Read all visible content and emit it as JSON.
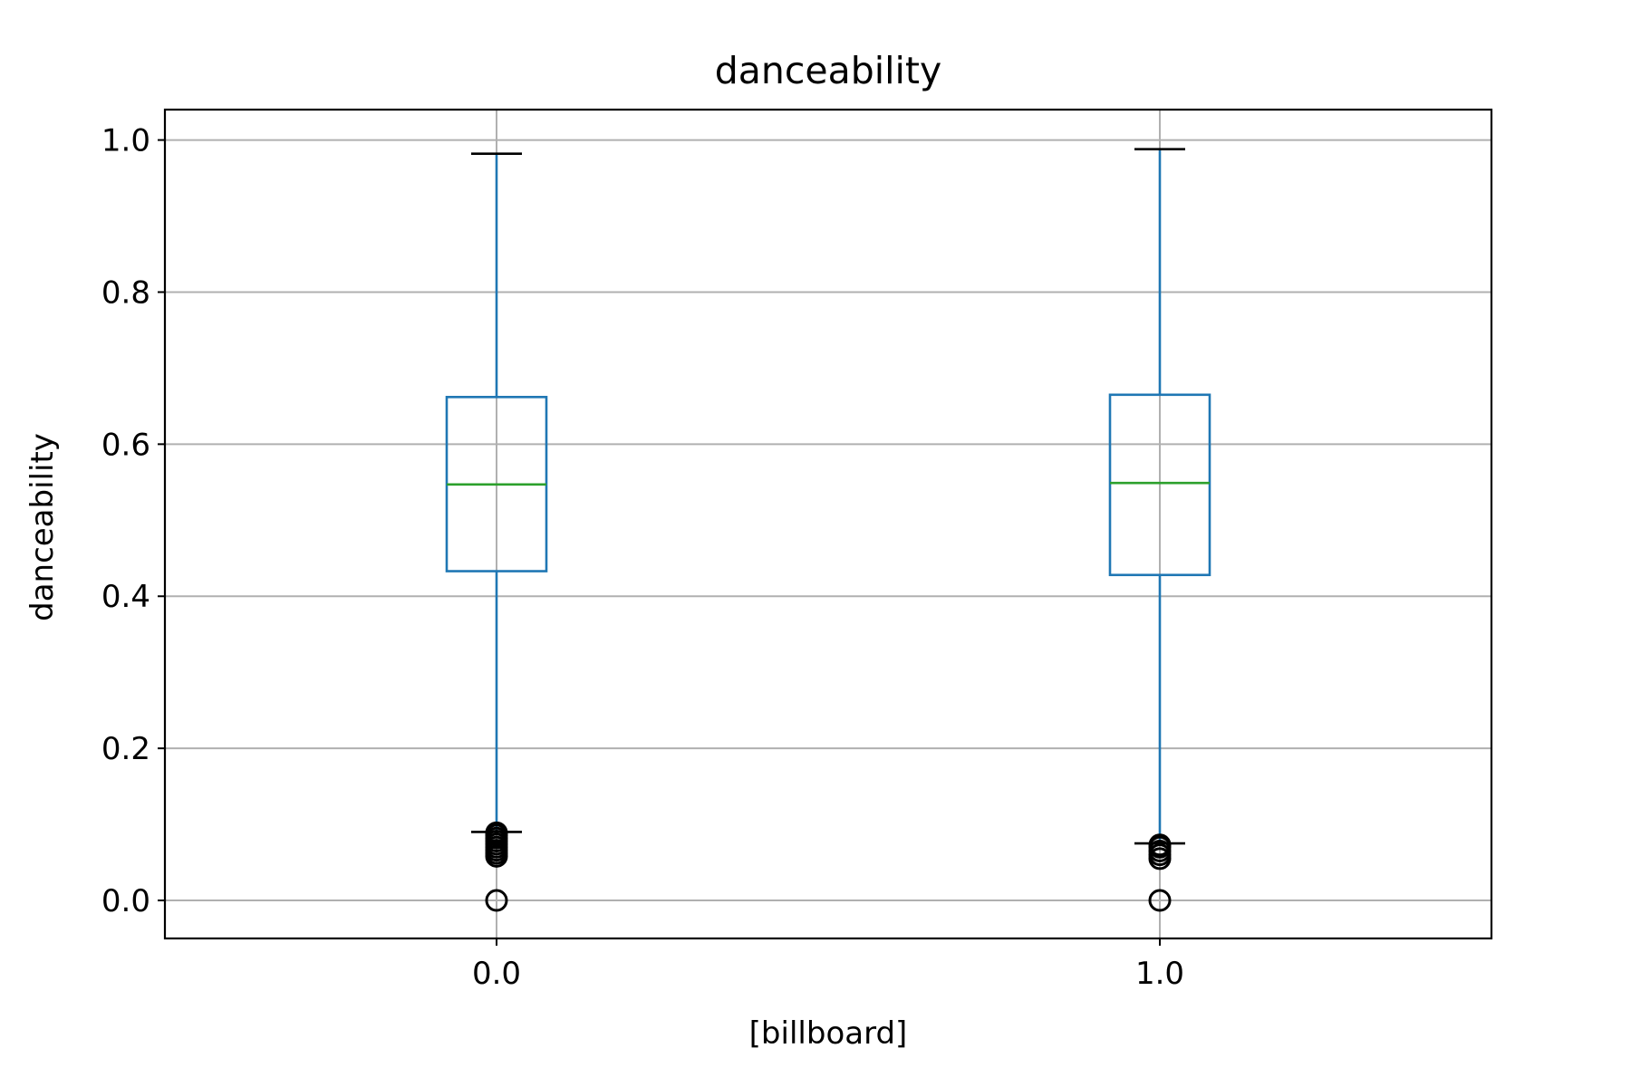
{
  "chart_data": {
    "type": "box",
    "title": "danceability",
    "xlabel": "[billboard]",
    "ylabel": "danceability",
    "categories": [
      "0.0",
      "1.0"
    ],
    "ylim": [
      -0.05,
      1.04
    ],
    "yticks": [
      "0.0",
      "0.2",
      "0.4",
      "0.6",
      "0.8",
      "1.0"
    ],
    "grid": true,
    "boxes": [
      {
        "category": "0.0",
        "whisker_low": 0.09,
        "q1": 0.433,
        "median": 0.547,
        "q3": 0.662,
        "whisker_high": 0.982,
        "outliers": [
          0.0,
          0.058,
          0.062,
          0.066,
          0.07,
          0.074,
          0.078,
          0.082,
          0.086,
          0.089
        ]
      },
      {
        "category": "1.0",
        "whisker_low": 0.075,
        "q1": 0.428,
        "median": 0.549,
        "q3": 0.665,
        "whisker_high": 0.988,
        "outliers": [
          0.0,
          0.055,
          0.06,
          0.065,
          0.07,
          0.073
        ]
      }
    ],
    "colors": {
      "box": "#1f77b4",
      "median": "#2ca02c",
      "whisker_cap": "#000000",
      "outlier": "#000000",
      "grid": "#b0b0b0"
    }
  }
}
